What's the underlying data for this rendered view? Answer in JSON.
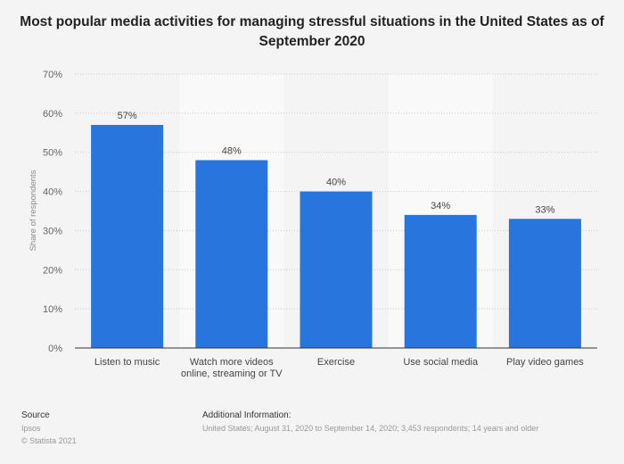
{
  "chart_data": {
    "type": "bar",
    "title": "Most popular media activities for managing stressful situations in the United States as of September 2020",
    "categories": [
      "Listen to music",
      "Watch more videos online, streaming or TV",
      "Exercise",
      "Use social media",
      "Play video games"
    ],
    "category_lines": [
      [
        "Listen to music"
      ],
      [
        "Watch more videos",
        "online, streaming or TV"
      ],
      [
        "Exercise"
      ],
      [
        "Use social media"
      ],
      [
        "Play video games"
      ]
    ],
    "values": [
      57,
      48,
      40,
      34,
      33
    ],
    "value_labels": [
      "57%",
      "48%",
      "40%",
      "34%",
      "33%"
    ],
    "ylabel": "Share of respondents",
    "xlabel": "",
    "ylim": [
      0,
      70
    ],
    "yticks": [
      "0%",
      "10%",
      "20%",
      "30%",
      "40%",
      "50%",
      "60%",
      "70%"
    ],
    "grid": true,
    "bar_color": "#2876dd"
  },
  "footer": {
    "source_heading": "Source",
    "source": "Ipsos",
    "copyright": "© Statista 2021",
    "info_heading": "Additional Information:",
    "info": "United States; August 31, 2020 to September 14, 2020; 3,453 respondents; 14 years and older"
  }
}
